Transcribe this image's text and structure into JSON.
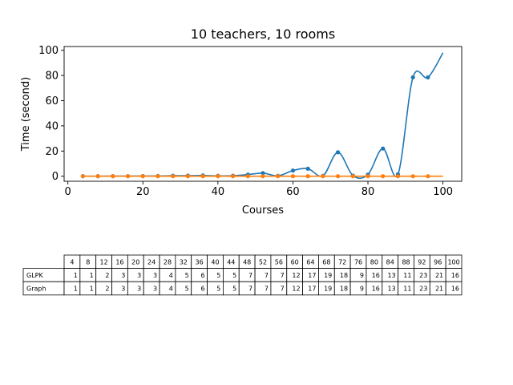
{
  "chart_data": {
    "type": "line",
    "title": "10 teachers, 10 rooms",
    "xlabel": "Courses",
    "ylabel": "Time (second)",
    "xlim": [
      -1,
      105
    ],
    "ylim": [
      -4,
      103
    ],
    "xticks": [
      0,
      20,
      40,
      60,
      80,
      100
    ],
    "yticks": [
      0,
      20,
      40,
      60,
      80,
      100
    ],
    "grid": false,
    "series": [
      {
        "color": "#1f77b4",
        "x": [
          4,
          8,
          12,
          16,
          20,
          24,
          28,
          32,
          36,
          40,
          44,
          48,
          52,
          56,
          60,
          64,
          68,
          72,
          76,
          80,
          84,
          88,
          92,
          96,
          100
        ],
        "y": [
          0.05,
          0.05,
          0.1,
          0.1,
          0.15,
          0.2,
          0.4,
          0.45,
          0.6,
          0.3,
          0.4,
          1.3,
          2.5,
          0.3,
          4.5,
          6,
          0.3,
          19,
          0.5,
          1.3,
          22,
          1.5,
          78.5,
          78.5,
          98
        ]
      },
      {
        "color": "#ff7f0e",
        "x": [
          4,
          8,
          12,
          16,
          20,
          24,
          28,
          32,
          36,
          40,
          44,
          48,
          52,
          56,
          60,
          64,
          68,
          72,
          76,
          80,
          84,
          88,
          92,
          96,
          100
        ],
        "y": [
          0,
          0,
          0,
          0,
          0,
          0,
          0,
          0,
          0,
          0,
          0,
          0,
          0,
          0,
          0,
          0,
          0,
          0,
          0,
          0,
          0,
          0,
          0,
          0,
          0
        ]
      }
    ]
  },
  "table": {
    "columns": [
      "4",
      "8",
      "12",
      "16",
      "20",
      "24",
      "28",
      "32",
      "36",
      "40",
      "44",
      "48",
      "52",
      "56",
      "60",
      "64",
      "68",
      "72",
      "76",
      "80",
      "84",
      "88",
      "92",
      "96",
      "100"
    ],
    "rows": [
      {
        "label": "GLPK",
        "values": [
          "1",
          "1",
          "2",
          "3",
          "3",
          "3",
          "4",
          "5",
          "6",
          "5",
          "5",
          "7",
          "7",
          "7",
          "12",
          "17",
          "19",
          "18",
          "9",
          "16",
          "13",
          "11",
          "23",
          "21",
          "16"
        ]
      },
      {
        "label": "Graph",
        "values": [
          "1",
          "1",
          "2",
          "3",
          "3",
          "3",
          "4",
          "5",
          "6",
          "5",
          "5",
          "7",
          "7",
          "7",
          "12",
          "17",
          "19",
          "18",
          "9",
          "16",
          "13",
          "11",
          "23",
          "21",
          "16"
        ]
      }
    ]
  }
}
